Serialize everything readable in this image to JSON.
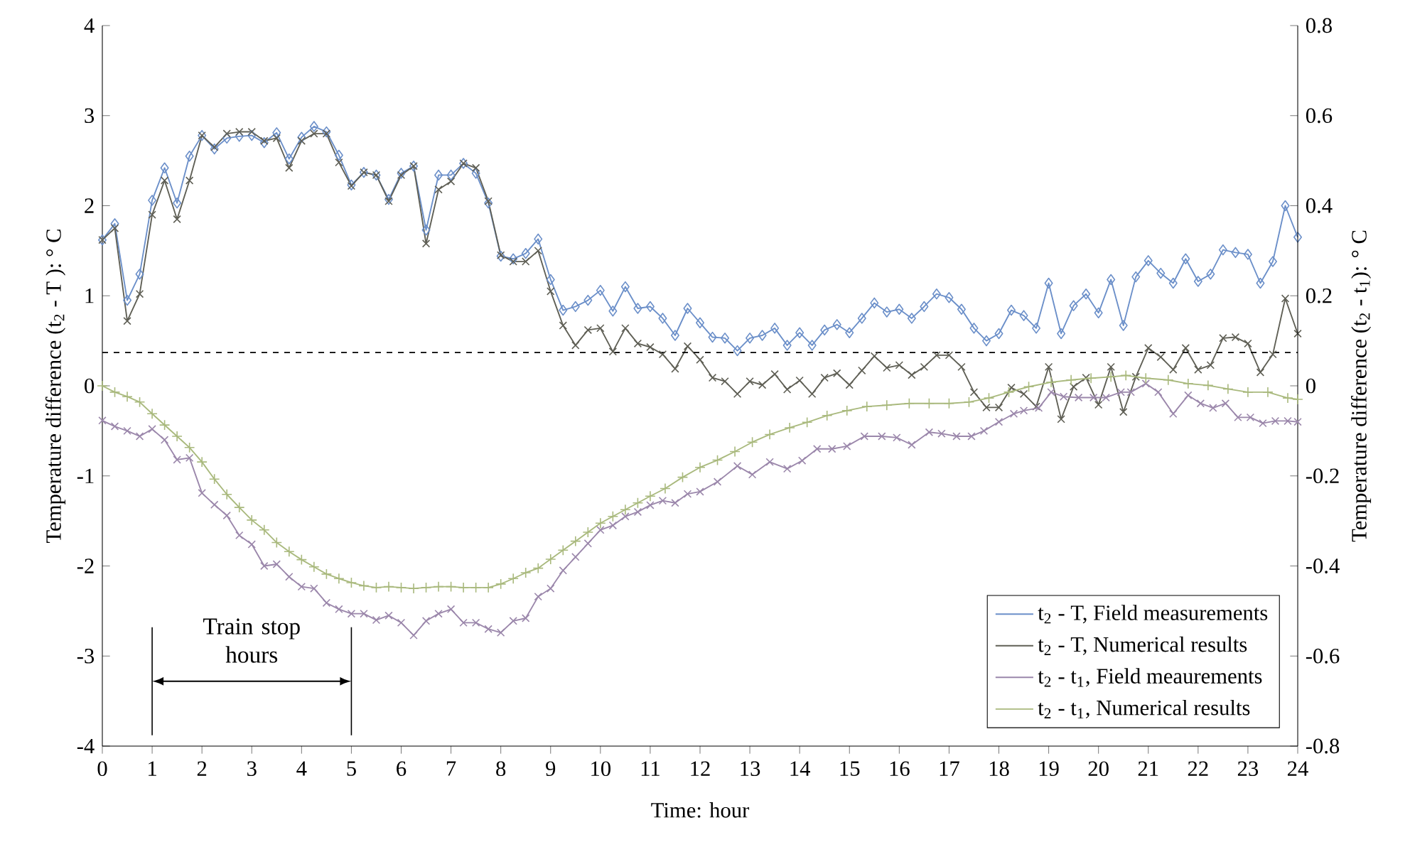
{
  "chart_data": {
    "type": "line",
    "xlabel": "Time: hour",
    "ylabel": "Temperature difference (t$_{2}$ - T ): ° C",
    "y2label": "Temperature difference (t$_{2}$ - t$_{1}$): ° C",
    "xlim": [
      0,
      24
    ],
    "xticks": [
      0,
      1,
      2,
      3,
      4,
      5,
      6,
      7,
      8,
      9,
      10,
      11,
      12,
      13,
      14,
      15,
      16,
      17,
      18,
      19,
      20,
      21,
      22,
      23,
      24
    ],
    "ylim": [
      -4,
      4
    ],
    "yticks": [
      -4,
      -3,
      -2,
      -1,
      0,
      1,
      2,
      3,
      4
    ],
    "y2lim": [
      -0.8,
      0.8
    ],
    "y2ticks": [
      -0.8,
      -0.6,
      -0.4,
      -0.2,
      0,
      0.2,
      0.4,
      0.6,
      0.8
    ],
    "legend": "bottom right",
    "grid": false,
    "line_style": "solid",
    "series": [
      {
        "name": "t$_{2}$ - T, Field measurements",
        "color": "#6b8fc9",
        "marker": "diamond",
        "axis": "y",
        "x": [
          0,
          0.25,
          0.5,
          0.75,
          1,
          1.25,
          1.5,
          1.75,
          2,
          2.25,
          2.5,
          2.75,
          3,
          3.25,
          3.5,
          3.75,
          4,
          4.25,
          4.5,
          4.75,
          5,
          5.25,
          5.5,
          5.75,
          6,
          6.25,
          6.5,
          6.75,
          7,
          7.25,
          7.5,
          7.75,
          8,
          8.25,
          8.5,
          8.75,
          9,
          9.25,
          9.5,
          9.75,
          10,
          10.25,
          10.5,
          10.75,
          11,
          11.25,
          11.5,
          11.75,
          12,
          12.25,
          12.5,
          12.75,
          13,
          13.25,
          13.5,
          13.75,
          14,
          14.25,
          14.5,
          14.75,
          15,
          15.25,
          15.5,
          15.75,
          16,
          16.25,
          16.5,
          16.75,
          17,
          17.25,
          17.5,
          17.75,
          18,
          18.25,
          18.5,
          18.75,
          19,
          19.25,
          19.5,
          19.75,
          20,
          20.25,
          20.5,
          20.75,
          21,
          21.25,
          21.5,
          21.75,
          22,
          22.25,
          22.5,
          22.75,
          23,
          23.25,
          23.5,
          23.75,
          24
        ],
        "values": [
          1.62,
          1.8,
          0.95,
          1.24,
          2.06,
          2.42,
          2.03,
          2.55,
          2.78,
          2.63,
          2.75,
          2.77,
          2.78,
          2.7,
          2.81,
          2.52,
          2.76,
          2.88,
          2.82,
          2.56,
          2.23,
          2.37,
          2.34,
          2.07,
          2.36,
          2.44,
          1.73,
          2.34,
          2.34,
          2.47,
          2.36,
          2.03,
          1.44,
          1.41,
          1.47,
          1.63,
          1.18,
          0.84,
          0.88,
          0.95,
          1.06,
          0.83,
          1.1,
          0.86,
          0.88,
          0.75,
          0.56,
          0.86,
          0.7,
          0.54,
          0.53,
          0.39,
          0.53,
          0.56,
          0.64,
          0.45,
          0.59,
          0.45,
          0.62,
          0.68,
          0.59,
          0.75,
          0.92,
          0.82,
          0.85,
          0.75,
          0.88,
          1.02,
          0.98,
          0.85,
          0.64,
          0.5,
          0.58,
          0.84,
          0.78,
          0.64,
          1.14,
          0.58,
          0.89,
          1.02,
          0.81,
          1.18,
          0.67,
          1.21,
          1.39,
          1.25,
          1.14,
          1.41,
          1.16,
          1.24,
          1.51,
          1.48,
          1.46,
          1.14,
          1.38,
          2.0,
          1.65
        ]
      },
      {
        "name": "t$_{2}$ - T, Numerical results",
        "color": "#5f5f55",
        "marker": "cross",
        "axis": "y",
        "x": [
          0,
          0.25,
          0.5,
          0.75,
          1,
          1.25,
          1.5,
          1.75,
          2,
          2.25,
          2.5,
          2.75,
          3,
          3.25,
          3.5,
          3.75,
          4,
          4.25,
          4.5,
          4.75,
          5,
          5.25,
          5.5,
          5.75,
          6,
          6.25,
          6.5,
          6.75,
          7,
          7.25,
          7.5,
          7.75,
          8,
          8.25,
          8.5,
          8.75,
          9,
          9.25,
          9.5,
          9.75,
          10,
          10.25,
          10.5,
          10.75,
          11,
          11.25,
          11.5,
          11.75,
          12,
          12.25,
          12.5,
          12.75,
          13,
          13.25,
          13.5,
          13.75,
          14,
          14.25,
          14.5,
          14.75,
          15,
          15.25,
          15.5,
          15.75,
          16,
          16.25,
          16.5,
          16.75,
          17,
          17.25,
          17.5,
          17.75,
          18,
          18.25,
          18.5,
          18.75,
          19,
          19.25,
          19.5,
          19.75,
          20,
          20.25,
          20.5,
          20.75,
          21,
          21.25,
          21.5,
          21.75,
          22,
          22.25,
          22.5,
          22.75,
          23,
          23.25,
          23.5,
          23.75,
          24
        ],
        "values": [
          1.62,
          1.75,
          0.72,
          1.02,
          1.9,
          2.28,
          1.85,
          2.28,
          2.78,
          2.65,
          2.8,
          2.82,
          2.82,
          2.72,
          2.75,
          2.42,
          2.72,
          2.8,
          2.8,
          2.48,
          2.22,
          2.37,
          2.34,
          2.05,
          2.34,
          2.44,
          1.58,
          2.18,
          2.27,
          2.47,
          2.42,
          2.05,
          1.45,
          1.38,
          1.38,
          1.5,
          1.05,
          0.67,
          0.45,
          0.62,
          0.64,
          0.38,
          0.64,
          0.47,
          0.43,
          0.35,
          0.19,
          0.44,
          0.29,
          0.09,
          0.05,
          -0.09,
          0.05,
          0.01,
          0.13,
          -0.04,
          0.06,
          -0.09,
          0.09,
          0.14,
          0.01,
          0.17,
          0.33,
          0.2,
          0.23,
          0.12,
          0.21,
          0.34,
          0.34,
          0.21,
          -0.07,
          -0.24,
          -0.24,
          -0.02,
          -0.09,
          -0.23,
          0.21,
          -0.37,
          -0.01,
          0.09,
          -0.21,
          0.21,
          -0.29,
          0.1,
          0.42,
          0.32,
          0.18,
          0.42,
          0.18,
          0.23,
          0.53,
          0.54,
          0.47,
          0.15,
          0.35,
          0.97,
          0.58
        ]
      },
      {
        "name": "t$_{2}$ - t$_{1}$, Field meaurements",
        "color": "#9b87ab",
        "marker": "cross",
        "axis": "y2",
        "x": [
          0,
          0.25,
          0.5,
          0.75,
          1,
          1.25,
          1.5,
          1.75,
          2,
          2.25,
          2.5,
          2.75,
          3,
          3.25,
          3.5,
          3.75,
          4,
          4.25,
          4.5,
          4.75,
          5,
          5.25,
          5.5,
          5.75,
          6,
          6.25,
          6.5,
          6.75,
          7,
          7.25,
          7.5,
          7.75,
          8,
          8.25,
          8.5,
          8.75,
          9,
          9.25,
          9.5,
          9.75,
          10,
          10.25,
          10.5,
          10.75,
          11,
          11.25,
          11.5,
          11.75,
          12,
          12.35,
          12.75,
          13.05,
          13.4,
          13.75,
          14.05,
          14.35,
          14.65,
          14.95,
          15.3,
          15.65,
          15.95,
          16.25,
          16.6,
          16.85,
          17.15,
          17.45,
          17.7,
          18,
          18.3,
          18.5,
          18.8,
          19.05,
          19.3,
          19.6,
          19.9,
          20.15,
          20.45,
          20.65,
          20.95,
          21.2,
          21.5,
          21.8,
          22.05,
          22.3,
          22.55,
          22.8,
          23.05,
          23.3,
          23.55,
          23.8,
          24
        ],
        "values": [
          -0.077,
          -0.09,
          -0.1,
          -0.112,
          -0.096,
          -0.12,
          -0.164,
          -0.16,
          -0.238,
          -0.264,
          -0.288,
          -0.332,
          -0.352,
          -0.4,
          -0.396,
          -0.424,
          -0.446,
          -0.45,
          -0.482,
          -0.496,
          -0.506,
          -0.506,
          -0.52,
          -0.51,
          -0.526,
          -0.554,
          -0.522,
          -0.506,
          -0.496,
          -0.526,
          -0.526,
          -0.54,
          -0.548,
          -0.522,
          -0.516,
          -0.468,
          -0.45,
          -0.41,
          -0.38,
          -0.35,
          -0.32,
          -0.31,
          -0.29,
          -0.28,
          -0.265,
          -0.255,
          -0.26,
          -0.24,
          -0.235,
          -0.213,
          -0.178,
          -0.197,
          -0.169,
          -0.184,
          -0.166,
          -0.14,
          -0.14,
          -0.134,
          -0.112,
          -0.112,
          -0.115,
          -0.131,
          -0.103,
          -0.106,
          -0.112,
          -0.112,
          -0.1,
          -0.08,
          -0.062,
          -0.055,
          -0.049,
          -0.014,
          -0.024,
          -0.026,
          -0.026,
          -0.026,
          -0.014,
          -0.014,
          0.005,
          -0.014,
          -0.062,
          -0.021,
          -0.039,
          -0.049,
          -0.039,
          -0.07,
          -0.07,
          -0.083,
          -0.078,
          -0.078,
          -0.08
        ]
      },
      {
        "name": "t$_{2}$ - t$_{1}$, Numerical results",
        "color": "#a9b97d",
        "marker": "plus",
        "axis": "y2",
        "x": [
          0,
          0.25,
          0.5,
          0.75,
          1,
          1.25,
          1.5,
          1.75,
          2,
          2.25,
          2.5,
          2.75,
          3,
          3.25,
          3.5,
          3.75,
          4,
          4.25,
          4.5,
          4.75,
          5,
          5.25,
          5.5,
          5.75,
          6,
          6.25,
          6.5,
          6.75,
          7,
          7.25,
          7.5,
          7.75,
          8,
          8.25,
          8.5,
          8.75,
          9,
          9.25,
          9.5,
          9.75,
          10,
          10.25,
          10.5,
          10.75,
          11,
          11.3,
          11.65,
          12,
          12.35,
          12.7,
          13.05,
          13.4,
          13.8,
          14.15,
          14.55,
          14.95,
          15.35,
          15.75,
          16.2,
          16.6,
          17,
          17.4,
          17.8,
          18.2,
          18.6,
          19.05,
          19.45,
          19.85,
          20.25,
          20.55,
          20.95,
          21.4,
          21.8,
          22.2,
          22.6,
          23,
          23.4,
          23.8,
          24
        ],
        "values": [
          0,
          -0.014,
          -0.024,
          -0.036,
          -0.062,
          -0.087,
          -0.112,
          -0.137,
          -0.169,
          -0.207,
          -0.241,
          -0.27,
          -0.298,
          -0.32,
          -0.348,
          -0.368,
          -0.386,
          -0.402,
          -0.418,
          -0.428,
          -0.437,
          -0.444,
          -0.448,
          -0.446,
          -0.448,
          -0.45,
          -0.448,
          -0.446,
          -0.446,
          -0.448,
          -0.448,
          -0.448,
          -0.44,
          -0.428,
          -0.415,
          -0.405,
          -0.385,
          -0.365,
          -0.345,
          -0.325,
          -0.305,
          -0.29,
          -0.275,
          -0.26,
          -0.245,
          -0.228,
          -0.203,
          -0.181,
          -0.165,
          -0.146,
          -0.125,
          -0.108,
          -0.093,
          -0.081,
          -0.066,
          -0.055,
          -0.046,
          -0.043,
          -0.039,
          -0.039,
          -0.039,
          -0.036,
          -0.027,
          -0.014,
          -0.002,
          0.008,
          0.013,
          0.017,
          0.02,
          0.023,
          0.017,
          0.013,
          0.005,
          0.001,
          -0.007,
          -0.014,
          -0.014,
          -0.027,
          -0.03
        ]
      }
    ],
    "ref_lines": [
      {
        "axis": "y",
        "value": 0.37,
        "line_style": "dashed",
        "color": "#000000"
      },
      {
        "axis": "x",
        "value": 1,
        "line_style": "solid",
        "color": "#000000"
      },
      {
        "axis": "x",
        "value": 5,
        "line_style": "solid",
        "color": "#000000"
      }
    ],
    "annotations": [
      "Train stop hours"
    ]
  }
}
